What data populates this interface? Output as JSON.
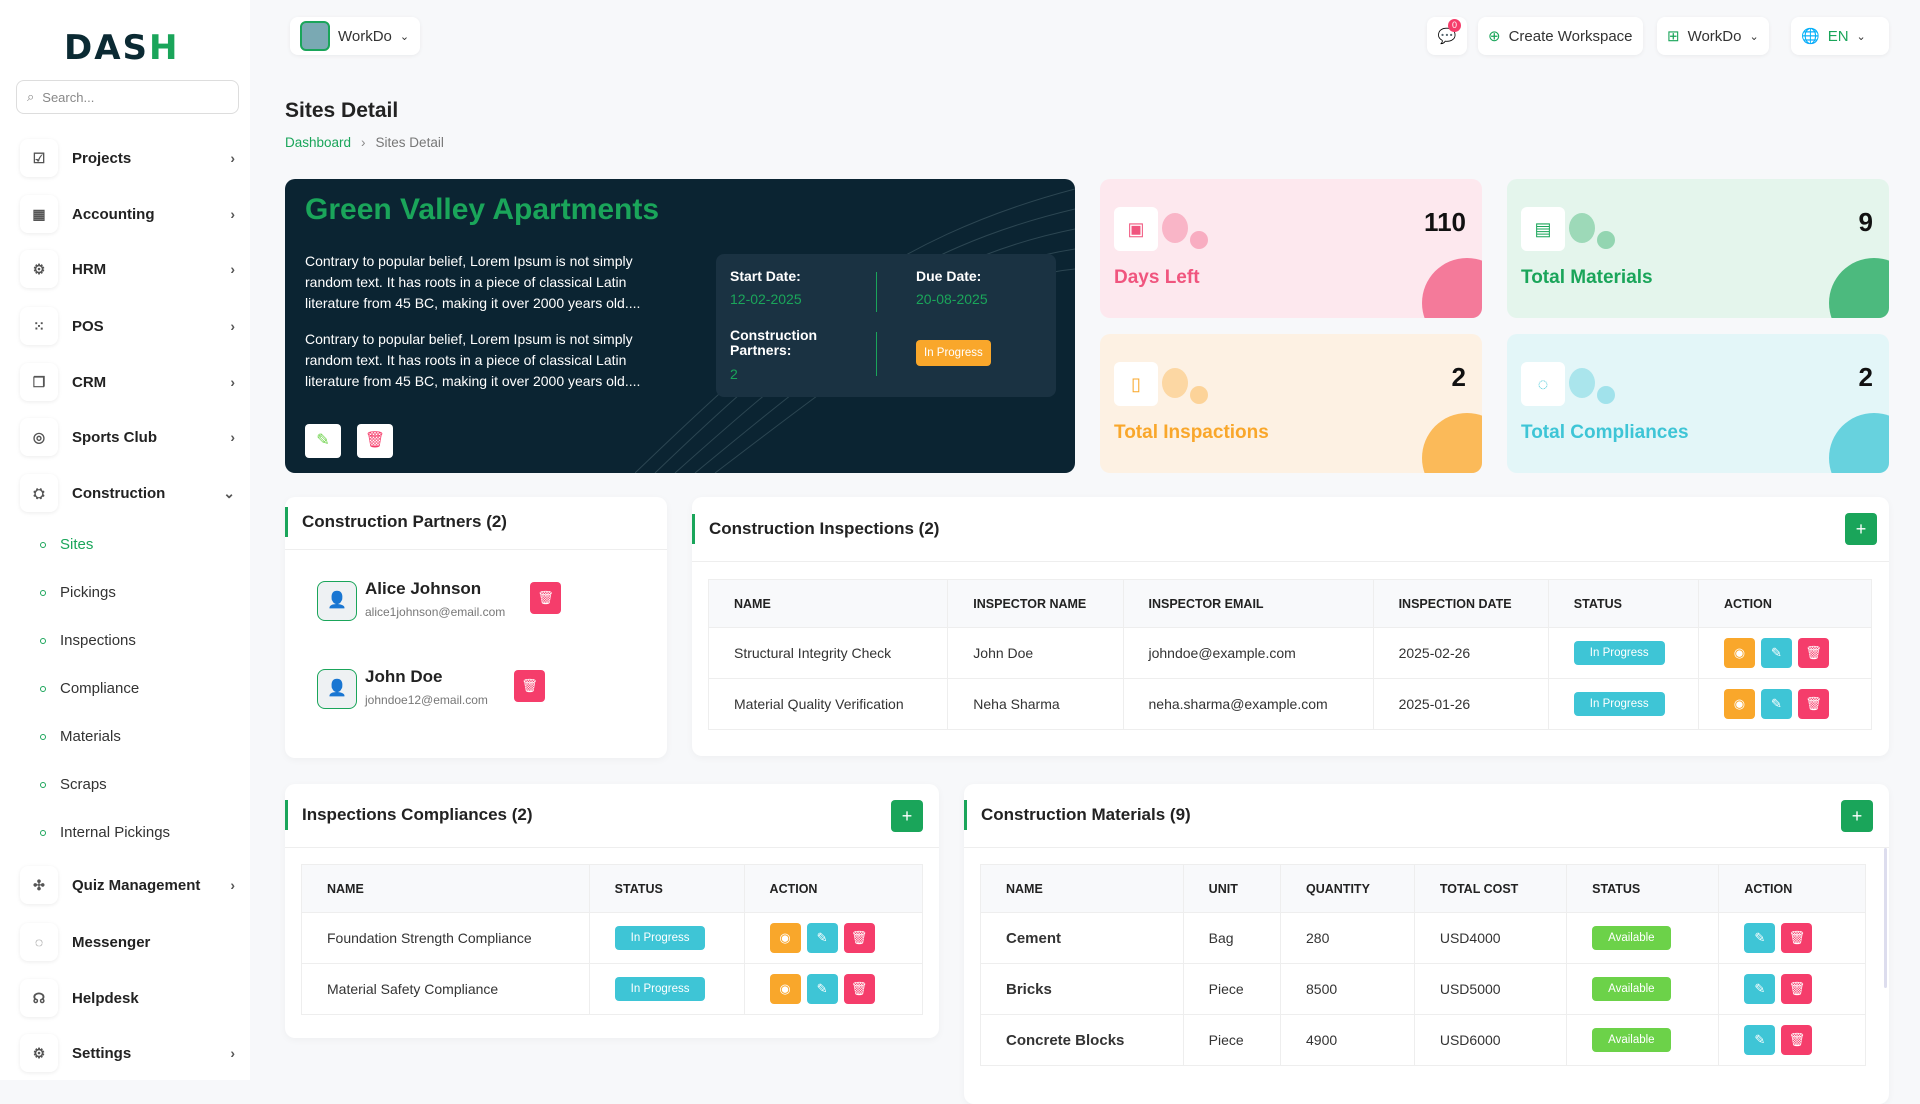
{
  "brand": {
    "logo": "DASH"
  },
  "sidebar": {
    "search_placeholder": "Search...",
    "items": [
      {
        "label": "Projects",
        "icon": "checkbox-icon"
      },
      {
        "label": "Accounting",
        "icon": "grid-icon"
      },
      {
        "label": "HRM",
        "icon": "users-icon"
      },
      {
        "label": "POS",
        "icon": "dots-grid-icon"
      },
      {
        "label": "CRM",
        "icon": "layers-icon"
      },
      {
        "label": "Sports Club",
        "icon": "ball-icon"
      },
      {
        "label": "Construction",
        "icon": "crane-icon",
        "expanded": true
      }
    ],
    "sub_items": [
      "Sites",
      "Pickings",
      "Inspections",
      "Compliance",
      "Materials",
      "Scraps",
      "Internal Pickings"
    ],
    "active_sub": "Sites",
    "items_after": [
      {
        "label": "Quiz Management",
        "icon": "puzzle-icon",
        "chevron": true
      },
      {
        "label": "Messenger",
        "icon": "chat-icon",
        "chevron": false
      },
      {
        "label": "Helpdesk",
        "icon": "headset-icon",
        "chevron": false
      },
      {
        "label": "Settings",
        "icon": "gear-icon",
        "chevron": true
      }
    ]
  },
  "header": {
    "workspace": "WorkDo",
    "notification_count": "0",
    "create_workspace": "Create Workspace",
    "workspace_switch": "WorkDo",
    "language": "EN"
  },
  "page": {
    "title": "Sites Detail",
    "breadcrumb": [
      "Dashboard",
      "Sites Detail"
    ]
  },
  "site": {
    "name": "Green Valley Apartments",
    "desc1": "Contrary to popular belief, Lorem Ipsum is not simply random text. It has roots in a piece of classical Latin literature from 45 BC, making it over 2000 years old....",
    "desc2": "Contrary to popular belief, Lorem Ipsum is not simply random text. It has roots in a piece of classical Latin literature from 45 BC, making it over 2000 years old....",
    "start_label": "Start Date:",
    "start": "12-02-2025",
    "due_label": "Due Date:",
    "due": "20-08-2025",
    "partners_label": "Construction Partners:",
    "partners": "2",
    "status": "In Progress"
  },
  "stats": [
    {
      "label": "Days Left",
      "value": "110",
      "color": "#f0557e",
      "bg": "#fde8ee",
      "icon": "calendar-icon"
    },
    {
      "label": "Total Materials",
      "value": "9",
      "color": "#1aa55a",
      "bg": "#e4f5ec",
      "icon": "briefcase-icon"
    },
    {
      "label": "Total Inspactions",
      "value": "2",
      "color": "#f9a72b",
      "bg": "#fdf1e3",
      "icon": "document-icon"
    },
    {
      "label": "Total Compliances",
      "value": "2",
      "color": "#3ec5d6",
      "bg": "#e3f6f8",
      "icon": "message-icon"
    }
  ],
  "partners": {
    "title": "Construction Partners (2)",
    "list": [
      {
        "name": "Alice Johnson",
        "email": "alice1johnson@email.com"
      },
      {
        "name": "John Doe",
        "email": "johndoe12@email.com"
      }
    ]
  },
  "inspections": {
    "title": "Construction Inspections (2)",
    "columns": [
      "NAME",
      "INSPECTOR NAME",
      "INSPECTOR EMAIL",
      "INSPECTION DATE",
      "STATUS",
      "ACTION"
    ],
    "rows": [
      [
        "Structural Integrity Check",
        "John Doe",
        "johndoe@example.com",
        "2025-02-26",
        "In Progress"
      ],
      [
        "Material Quality Verification",
        "Neha Sharma",
        "neha.sharma@example.com",
        "2025-01-26",
        "In Progress"
      ]
    ]
  },
  "compliances": {
    "title": "Inspections Compliances (2)",
    "columns": [
      "NAME",
      "STATUS",
      "ACTION"
    ],
    "rows": [
      [
        "Foundation Strength Compliance",
        "In Progress"
      ],
      [
        "Material Safety Compliance",
        "In Progress"
      ]
    ]
  },
  "materials": {
    "title": "Construction Materials (9)",
    "columns": [
      "NAME",
      "UNIT",
      "QUANTITY",
      "TOTAL COST",
      "STATUS",
      "ACTION"
    ],
    "rows": [
      [
        "Cement",
        "Bag",
        "280",
        "USD4000",
        "Available"
      ],
      [
        "Bricks",
        "Piece",
        "8500",
        "USD5000",
        "Available"
      ],
      [
        "Concrete Blocks",
        "Piece",
        "4900",
        "USD6000",
        "Available"
      ]
    ]
  },
  "colors": {
    "accent": "#1aa55a",
    "hero_bg": "#0b2432",
    "in_progress": "#3ec5d6",
    "warning": "#f9a72b",
    "danger": "#f53d6b",
    "available": "#6cd249"
  }
}
